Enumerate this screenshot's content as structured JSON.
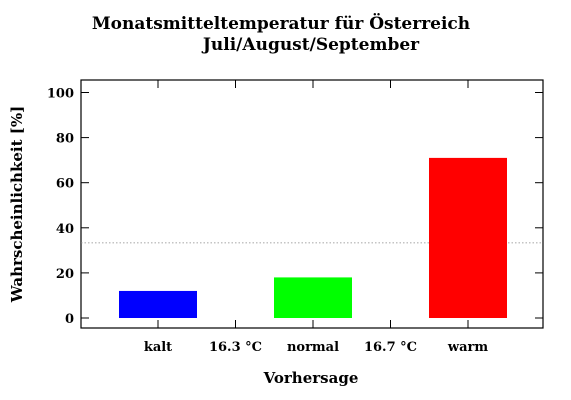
{
  "chart_data": {
    "type": "bar",
    "title_line1": "Monatsmitteltemperatur für Österreich",
    "title_line2": "Juli/August/September",
    "xlabel": "Vorhersage",
    "ylabel": "Wahrscheinlichkeit [%]",
    "ylim": [
      0,
      105
    ],
    "yticks": [
      0,
      20,
      40,
      60,
      80,
      100
    ],
    "categories": [
      "kalt",
      "normal",
      "warm"
    ],
    "values": [
      12,
      18,
      71
    ],
    "colors": [
      "#0000ff",
      "#00ff00",
      "#ff0000"
    ],
    "thresholds": [
      "16.3 °C",
      "16.7 °C"
    ],
    "reference_line": 33.3,
    "grid": false
  }
}
